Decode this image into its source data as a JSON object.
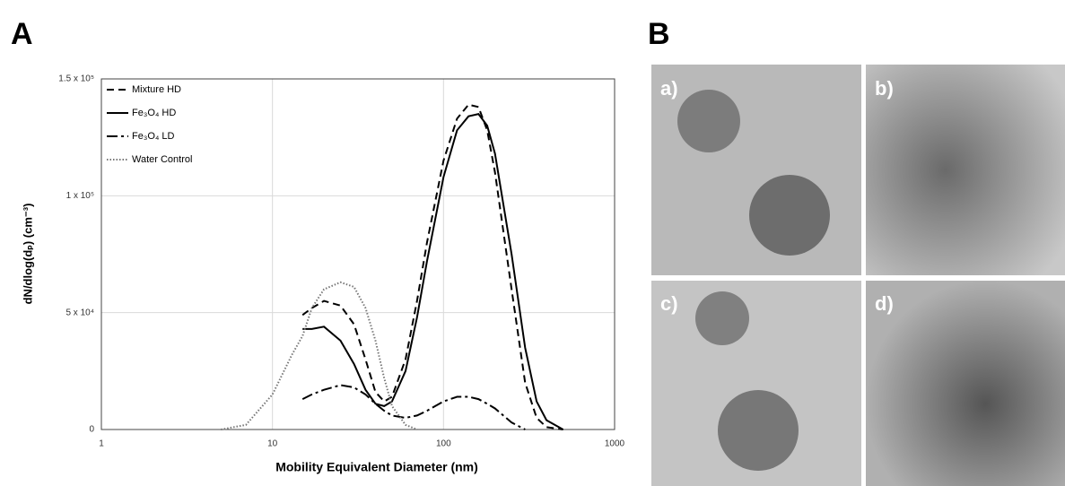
{
  "panel_labels": [
    "A",
    "B"
  ],
  "images": [
    {
      "label": "a)"
    },
    {
      "label": "b)"
    },
    {
      "label": "c)"
    },
    {
      "label": "d)"
    }
  ],
  "chart_data": {
    "type": "line",
    "xlabel": "Mobility Equivalent Diameter (nm)",
    "ylabel": "dN/dlog(dₚ) (cm⁻³)",
    "xscale": "log",
    "grid": true,
    "legend": "upper left",
    "xlim": [
      1,
      1000
    ],
    "xticks": [
      1,
      10,
      100,
      1000
    ],
    "ylim": [
      0,
      150000
    ],
    "yticks": [
      0,
      {
        "value": 50000,
        "label": "5 x 10⁴"
      },
      {
        "value": 100000,
        "label": "1 x 10⁵"
      },
      {
        "value": 150000,
        "label": "1.5 x 10⁵"
      }
    ],
    "x": [
      5,
      7,
      10,
      13,
      15,
      17,
      20,
      25,
      30,
      35,
      40,
      45,
      50,
      60,
      70,
      80,
      100,
      120,
      140,
      160,
      180,
      200,
      250,
      300,
      350,
      400,
      500,
      600
    ],
    "series": [
      {
        "name": "Mixture HD",
        "color": "#000000",
        "dash": "8,5",
        "values": [
          null,
          null,
          null,
          null,
          49000,
          52000,
          55000,
          53000,
          45000,
          30000,
          16000,
          12000,
          14000,
          30000,
          55000,
          80000,
          115000,
          133000,
          139000,
          138000,
          128000,
          110000,
          60000,
          20000,
          5000,
          1000,
          0,
          null
        ]
      },
      {
        "name": "Fe₃O₄ HD",
        "color": "#000000",
        "dash": "none",
        "values": [
          null,
          null,
          null,
          null,
          43000,
          43000,
          44000,
          38000,
          28000,
          17000,
          11000,
          10000,
          12000,
          25000,
          48000,
          72000,
          108000,
          128000,
          134000,
          135000,
          130000,
          118000,
          75000,
          35000,
          12000,
          4000,
          0,
          null
        ]
      },
      {
        "name": "Fe₃O₄ LD",
        "color": "#000000",
        "dash": "12,4,3,4",
        "values": [
          null,
          null,
          null,
          null,
          13000,
          15000,
          17000,
          19000,
          18000,
          15000,
          11000,
          8000,
          6000,
          5000,
          6000,
          8000,
          12000,
          14000,
          14000,
          13000,
          11000,
          9000,
          3000,
          0,
          null,
          null,
          null,
          null
        ]
      },
      {
        "name": "Water Control",
        "color": "#777777",
        "dash": "1.5,2",
        "values": [
          0,
          2000,
          15000,
          32000,
          40000,
          52000,
          60000,
          63000,
          61000,
          52000,
          38000,
          22000,
          10000,
          2000,
          0,
          null,
          null,
          null,
          null,
          null,
          null,
          null,
          null,
          null,
          null,
          null,
          null,
          null
        ]
      }
    ]
  }
}
